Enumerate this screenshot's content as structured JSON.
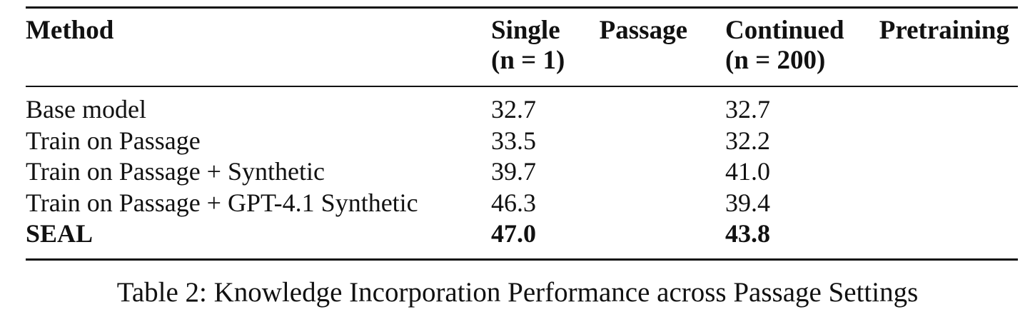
{
  "table": {
    "headers": {
      "method": "Method",
      "single_passage_line1_a": "Single",
      "single_passage_line1_b": "Passage",
      "single_passage_line2": "(n = 1)",
      "continued_pretraining_line1_a": "Continued",
      "continued_pretraining_line1_b": "Pretraining",
      "continued_pretraining_line2": "(n = 200)"
    },
    "rows": [
      {
        "method": "Base model",
        "single": "32.7",
        "continued": "32.7",
        "bold": false
      },
      {
        "method": "Train on Passage",
        "single": "33.5",
        "continued": "32.2",
        "bold": false
      },
      {
        "method": "Train on Passage + Synthetic",
        "single": "39.7",
        "continued": "41.0",
        "bold": false
      },
      {
        "method": "Train on Passage + GPT-4.1 Synthetic",
        "single": "46.3",
        "continued": "39.4",
        "bold": false
      },
      {
        "method": "SEAL",
        "single": "47.0",
        "continued": "43.8",
        "bold": true
      }
    ]
  },
  "caption": "Table 2: Knowledge Incorporation Performance across Passage Settings"
}
